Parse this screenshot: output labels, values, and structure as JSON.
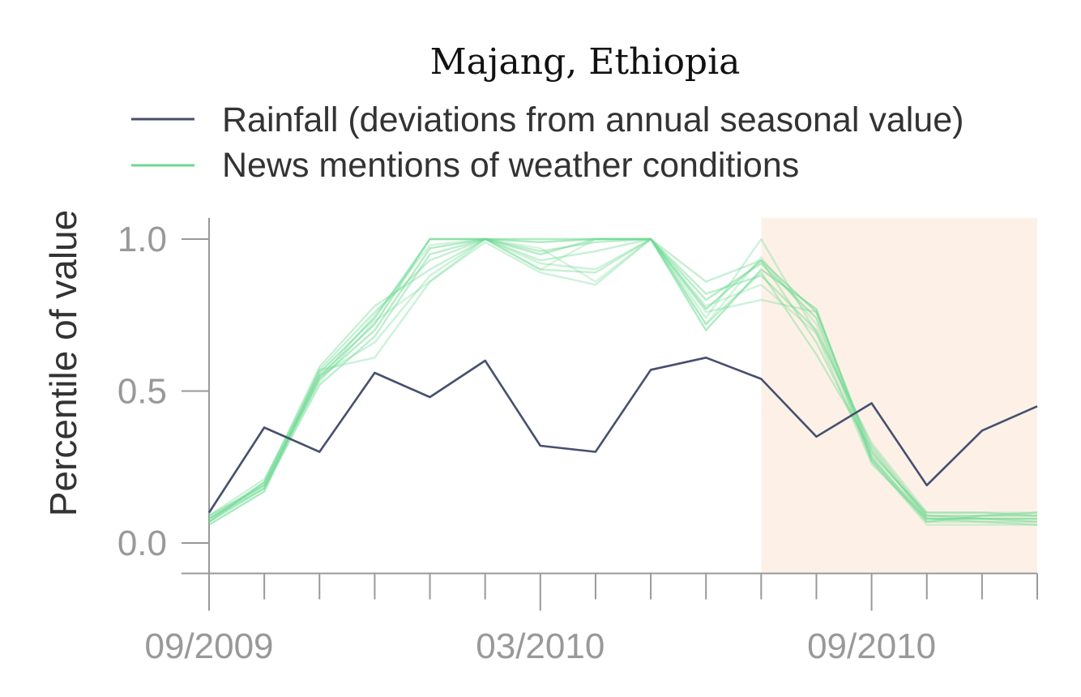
{
  "chart_data": {
    "type": "line",
    "title": "Majang, Ethiopia",
    "xlabel": "",
    "ylabel": "Percentile of value",
    "x_tick_labels": [
      "09/2009",
      "03/2010",
      "09/2010"
    ],
    "x_tick_label_positions": [
      0,
      6,
      12
    ],
    "y_ticks": [
      0.0,
      0.5,
      1.0
    ],
    "y_tick_labels": [
      "0.0",
      "0.5",
      "1.0"
    ],
    "ylim": [
      -0.1,
      1.07
    ],
    "x": [
      0,
      1,
      2,
      3,
      4,
      5,
      6,
      7,
      8,
      9,
      10,
      11,
      12,
      13,
      14,
      15
    ],
    "xlim": [
      0,
      15
    ],
    "shaded_region": {
      "x_start": 10,
      "x_end": 15,
      "color": "#fdf1e7"
    },
    "grid": false,
    "legend_placement": "top",
    "legend": [
      {
        "label": "Rainfall (deviations from annual seasonal value)",
        "color": "#46506e"
      },
      {
        "label": "News mentions of weather conditions",
        "color": "#6ed992"
      }
    ],
    "series": [
      {
        "name": "Rainfall (deviations from annual seasonal value)",
        "color": "#46506e",
        "opacity": 1.0,
        "values": [
          0.1,
          0.38,
          0.3,
          0.56,
          0.48,
          0.6,
          0.32,
          0.3,
          0.57,
          0.61,
          0.54,
          0.35,
          0.46,
          0.19,
          0.37,
          0.45
        ]
      },
      {
        "name": "",
        "color": "#6ed992",
        "opacity": 0.55,
        "values": [
          0.08,
          0.19,
          0.56,
          0.74,
          1.0,
          1.0,
          1.0,
          1.0,
          1.0,
          0.77,
          0.93,
          0.76,
          0.3,
          0.09,
          0.09,
          0.09
        ]
      },
      {
        "name": "",
        "color": "#6ed992",
        "opacity": 0.55,
        "values": [
          0.07,
          0.18,
          0.55,
          0.72,
          1.0,
          1.0,
          0.99,
          1.0,
          1.0,
          0.7,
          0.9,
          0.77,
          0.28,
          0.08,
          0.08,
          0.08
        ]
      },
      {
        "name": "",
        "color": "#6ed992",
        "opacity": 0.5,
        "values": [
          0.09,
          0.19,
          0.54,
          0.7,
          0.97,
          1.0,
          0.95,
          1.0,
          1.0,
          0.8,
          0.92,
          0.74,
          0.27,
          0.07,
          0.09,
          0.1
        ]
      },
      {
        "name": "",
        "color": "#6ed992",
        "opacity": 0.45,
        "values": [
          0.08,
          0.18,
          0.52,
          0.68,
          0.95,
          1.0,
          0.96,
          0.99,
          1.0,
          0.82,
          0.88,
          0.7,
          0.32,
          0.09,
          0.08,
          0.07
        ]
      },
      {
        "name": "",
        "color": "#6ed992",
        "opacity": 0.4,
        "values": [
          0.06,
          0.17,
          0.57,
          0.76,
          0.93,
          1.0,
          0.93,
          0.96,
          1.0,
          0.86,
          0.93,
          0.66,
          0.29,
          0.1,
          0.1,
          0.09
        ]
      },
      {
        "name": "",
        "color": "#6ed992",
        "opacity": 0.4,
        "values": [
          0.07,
          0.2,
          0.58,
          0.78,
          0.9,
          1.0,
          0.9,
          0.89,
          1.0,
          0.72,
          0.89,
          0.62,
          0.31,
          0.08,
          0.07,
          0.06
        ]
      },
      {
        "name": "",
        "color": "#6ed992",
        "opacity": 0.35,
        "values": [
          0.08,
          0.2,
          0.57,
          0.61,
          0.86,
          0.99,
          0.89,
          0.85,
          1.0,
          0.74,
          1.0,
          0.69,
          0.26,
          0.08,
          0.08,
          0.08
        ]
      },
      {
        "name": "",
        "color": "#6ed992",
        "opacity": 0.35,
        "values": [
          0.09,
          0.21,
          0.55,
          0.66,
          0.88,
          1.0,
          0.92,
          0.9,
          1.0,
          0.76,
          0.8,
          0.76,
          0.28,
          0.07,
          0.07,
          0.07
        ]
      },
      {
        "name": "",
        "color": "#6ed992",
        "opacity": 0.3,
        "values": [
          0.07,
          0.2,
          0.53,
          0.73,
          0.86,
          1.0,
          0.97,
          0.86,
          1.0,
          0.78,
          0.85,
          0.69,
          0.33,
          0.1,
          0.1,
          0.1
        ]
      },
      {
        "name": "",
        "color": "#6ed992",
        "opacity": 0.3,
        "values": [
          0.06,
          0.17,
          0.54,
          0.75,
          0.98,
          1.0,
          0.9,
          1.0,
          1.0,
          0.72,
          0.94,
          0.72,
          0.27,
          0.06,
          0.06,
          0.06
        ]
      }
    ]
  }
}
